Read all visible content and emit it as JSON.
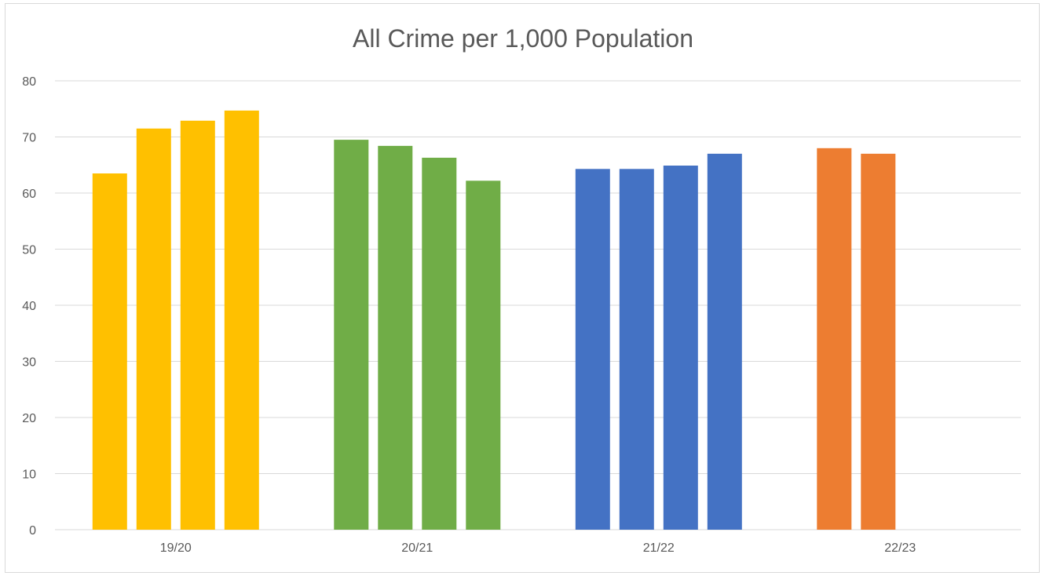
{
  "chart_data": {
    "type": "bar",
    "title": "All Crime per 1,000 Population",
    "xlabel": "",
    "ylabel": "",
    "ylim": [
      0,
      80
    ],
    "yticks": [
      0,
      10,
      20,
      30,
      40,
      50,
      60,
      70,
      80
    ],
    "grid": true,
    "legend": "none",
    "categories": [
      "19/20",
      "20/21",
      "21/22",
      "22/23"
    ],
    "groups": [
      {
        "category": "19/20",
        "color": "#FFC000",
        "values": [
          63.5,
          71.5,
          72.9,
          74.7
        ]
      },
      {
        "category": "20/21",
        "color": "#70AD47",
        "values": [
          69.5,
          68.4,
          66.3,
          62.2
        ]
      },
      {
        "category": "21/22",
        "color": "#4472C4",
        "values": [
          64.3,
          64.3,
          64.9,
          67.0
        ]
      },
      {
        "category": "22/23",
        "color": "#ED7D31",
        "values": [
          68.0,
          67.0
        ]
      }
    ]
  }
}
